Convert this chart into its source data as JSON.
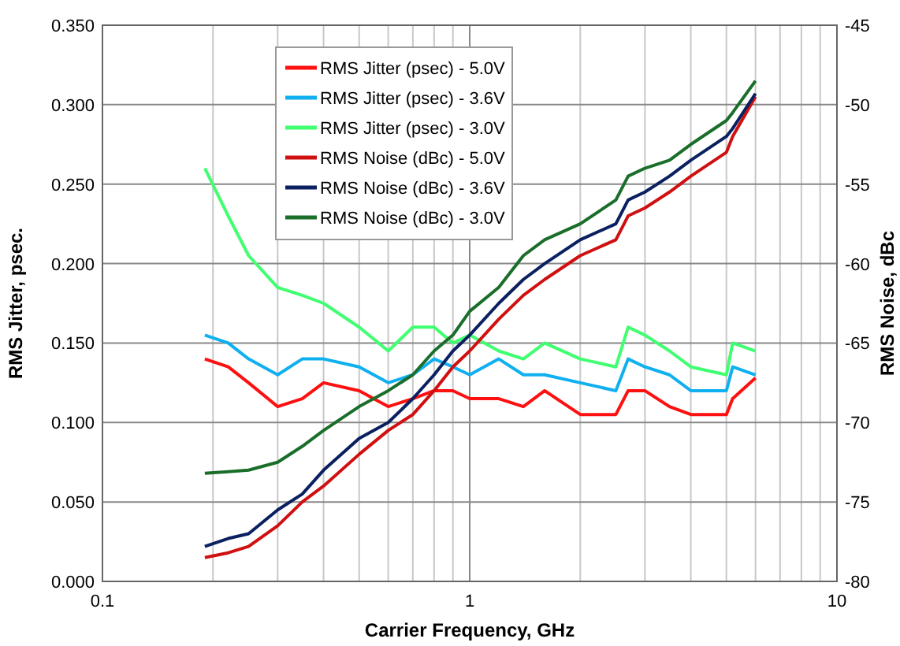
{
  "chart_data": {
    "type": "line",
    "xlabel": "Carrier Frequency, GHz",
    "ylabel": "RMS Jitter, psec.",
    "y2label": "RMS Noise, dBc",
    "log": "x",
    "grid": true,
    "legend": "top",
    "line_style": "solid",
    "x": [
      0.19,
      0.22,
      0.25,
      0.3,
      0.35,
      0.4,
      0.5,
      0.6,
      0.7,
      0.8,
      0.9,
      1.0,
      1.2,
      1.4,
      1.6,
      2,
      2.5,
      2.7,
      3,
      3.5,
      4,
      5,
      5.2,
      6
    ],
    "xlim": [
      0.1,
      10
    ],
    "xticks": [
      0.1,
      {
        "value": 0.2,
        "label": null
      },
      {
        "value": 0.3,
        "label": null
      },
      {
        "value": 0.4,
        "label": null
      },
      {
        "value": 0.5,
        "label": null
      },
      {
        "value": 0.6,
        "label": null
      },
      {
        "value": 0.7,
        "label": null
      },
      {
        "value": 0.8,
        "label": null
      },
      {
        "value": 0.9,
        "label": null
      },
      1,
      {
        "value": 2,
        "label": null
      },
      {
        "value": 3,
        "label": null
      },
      {
        "value": 4,
        "label": null
      },
      {
        "value": 5,
        "label": null
      },
      {
        "value": 6,
        "label": null
      },
      {
        "value": 7,
        "label": null
      },
      {
        "value": 8,
        "label": null
      },
      {
        "value": 9,
        "label": null
      },
      10
    ],
    "ylim": [
      0,
      0.35
    ],
    "yticks": [
      {
        "value": 0,
        "label": "0.000"
      },
      {
        "value": 0.05,
        "label": "0.050"
      },
      {
        "value": 0.1,
        "label": "0.100"
      },
      {
        "value": 0.15,
        "label": "0.150"
      },
      {
        "value": 0.2,
        "label": "0.200"
      },
      {
        "value": 0.25,
        "label": "0.250"
      },
      {
        "value": 0.3,
        "label": "0.300"
      },
      {
        "value": 0.35,
        "label": "0.350"
      }
    ],
    "y2lim": [
      -80,
      -45
    ],
    "y2ticks": [
      -80,
      -75,
      -70,
      -65,
      -60,
      -55,
      -50,
      -45
    ],
    "series": [
      {
        "name": "RMS Jitter (psec) - 5.0V",
        "color": "#ff1010",
        "values": [
          0.14,
          0.135,
          0.125,
          0.11,
          0.115,
          0.125,
          0.12,
          0.11,
          0.115,
          0.12,
          0.12,
          0.115,
          0.115,
          0.11,
          0.12,
          0.105,
          0.105,
          0.12,
          0.12,
          0.11,
          0.105,
          0.105,
          0.115,
          0.128
        ]
      },
      {
        "name": "RMS Jitter (psec) - 3.6V",
        "color": "#10b0f0",
        "values": [
          0.155,
          0.15,
          0.14,
          0.13,
          0.14,
          0.14,
          0.135,
          0.125,
          0.13,
          0.14,
          0.135,
          0.13,
          0.14,
          0.13,
          0.13,
          0.125,
          0.12,
          0.14,
          0.135,
          0.13,
          0.12,
          0.12,
          0.135,
          0.13
        ]
      },
      {
        "name": "RMS Jitter (psec) - 3.0V",
        "color": "#40ff70",
        "values": [
          0.26,
          0.23,
          0.205,
          0.185,
          0.18,
          0.175,
          0.16,
          0.145,
          0.16,
          0.16,
          0.15,
          0.155,
          0.145,
          0.14,
          0.15,
          0.14,
          0.135,
          0.16,
          0.155,
          0.145,
          0.135,
          0.13,
          0.15,
          0.145
        ]
      },
      {
        "name": "RMS Noise (dBc) - 5.0V",
        "color": "#d01010",
        "axis": "y2",
        "values": [
          -78.5,
          -78.2,
          -77.8,
          -76.5,
          -75,
          -74,
          -72,
          -70.5,
          -69.5,
          -68,
          -66.5,
          -65.5,
          -63.5,
          -62,
          -61,
          -59.5,
          -58.5,
          -57,
          -56.5,
          -55.5,
          -54.5,
          -53,
          -52,
          -49.5
        ]
      },
      {
        "name": "RMS Noise (dBc) - 3.6V",
        "color": "#0a2060",
        "axis": "y2",
        "values": [
          -77.8,
          -77.3,
          -77,
          -75.5,
          -74.5,
          -73,
          -71,
          -70,
          -68.5,
          -67,
          -65.5,
          -64.5,
          -62.5,
          -61,
          -60,
          -58.5,
          -57.5,
          -56,
          -55.5,
          -54.5,
          -53.5,
          -52,
          -51.5,
          -49.3
        ]
      },
      {
        "name": "RMS Noise (dBc) - 3.0V",
        "color": "#1a6e2a",
        "axis": "y2",
        "values": [
          -73.2,
          -73.1,
          -73,
          -72.5,
          -71.5,
          -70.5,
          -69,
          -68,
          -67,
          -65.5,
          -64.5,
          -63,
          -61.5,
          -59.5,
          -58.5,
          -57.5,
          -56,
          -54.5,
          -54,
          -53.5,
          -52.5,
          -51,
          -50.5,
          -48.5
        ]
      }
    ]
  }
}
